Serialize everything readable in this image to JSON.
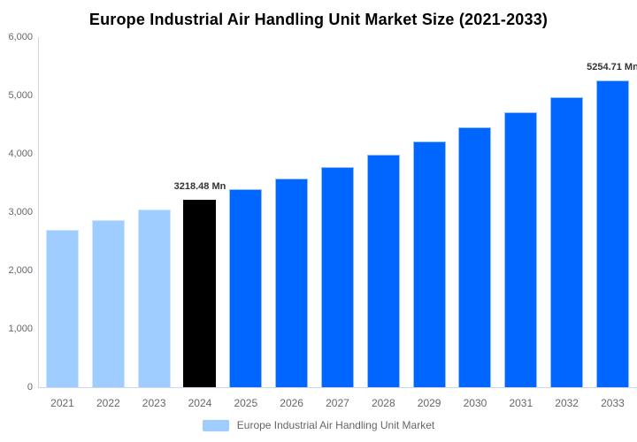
{
  "chart_data": {
    "type": "bar",
    "title": "Europe Industrial Air Handling Unit Market Size (2021-2033)",
    "categories": [
      "2021",
      "2022",
      "2023",
      "2024",
      "2025",
      "2026",
      "2027",
      "2028",
      "2029",
      "2030",
      "2031",
      "2032",
      "2033"
    ],
    "series": [
      {
        "name": "Europe Industrial Air Handling Unit Market",
        "values": [
          2700,
          2870,
          3040,
          3218.48,
          3390,
          3575,
          3770,
          3990,
          4210,
          4455,
          4705,
          4975,
          5254.71
        ]
      }
    ],
    "unit": "Mn",
    "xlabel": "",
    "ylabel": "",
    "ylim": [
      0,
      6000
    ],
    "ytick_step": 1000,
    "ytick_labels": [
      "0",
      "1,000",
      "2,000",
      "3,000",
      "4,000",
      "5,000",
      "6,000"
    ],
    "grid": false,
    "legend_position": "bottom",
    "bar_color_keys": [
      "past",
      "past",
      "past",
      "current",
      "forecast",
      "forecast",
      "forecast",
      "forecast",
      "forecast",
      "forecast",
      "forecast",
      "forecast",
      "forecast"
    ],
    "palette": {
      "past": "#9FCDFF",
      "current": "#000000",
      "forecast": "#0066FF"
    },
    "border_palette": {
      "past": "#cfe5fd",
      "current": "#000000",
      "forecast": "#8FBEF8"
    },
    "axis_color": "#ccd6eb",
    "data_labels": [
      {
        "category": "2024",
        "text": "3218.48 Mn"
      },
      {
        "category": "2033",
        "text": "5254.71 Mn"
      }
    ]
  },
  "legend": {
    "label": "Europe Industrial Air Handling Unit Market",
    "swatch_color": "#9FCDFF"
  }
}
